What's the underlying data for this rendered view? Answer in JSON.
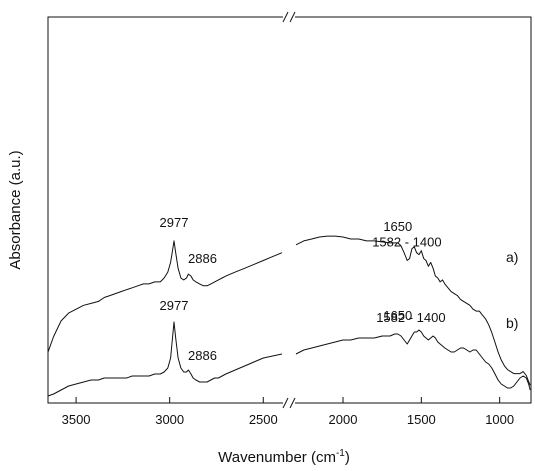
{
  "chart_data": {
    "type": "line",
    "title": "",
    "xlabel": "Wavenumber (cm⁻¹)",
    "ylabel": "Absorbance (a.u.)",
    "x_reversed": true,
    "x_axis_break": true,
    "xlim": [
      3650,
      800
    ],
    "ylim": [
      0,
      1
    ],
    "yticks_shown": false,
    "grid": false,
    "xticks": [
      3500,
      3000,
      2500,
      2000,
      1500,
      1000
    ],
    "xtick_labels": [
      "3500",
      "3000",
      "2500",
      "2000",
      "1500",
      "1000"
    ],
    "series": [
      {
        "name": "a)",
        "label": "a)",
        "x": [
          3650,
          3620,
          3580,
          3540,
          3500,
          3460,
          3420,
          3380,
          3350,
          3320,
          3290,
          3260,
          3230,
          3200,
          3170,
          3140,
          3110,
          3080,
          3050,
          3030,
          3010,
          2995,
          2985,
          2977,
          2968,
          2955,
          2940,
          2925,
          2910,
          2900,
          2886,
          2875,
          2860,
          2840,
          2820,
          2800,
          2780,
          2760,
          2740,
          2720,
          2700,
          2650,
          2600,
          2550,
          2500,
          2450,
          2400,
          2350,
          2300,
          2250,
          2200,
          2150,
          2100,
          2050,
          2000,
          1950,
          1900,
          1850,
          1800,
          1750,
          1700,
          1670,
          1650,
          1630,
          1610,
          1590,
          1575,
          1560,
          1545,
          1530,
          1515,
          1500,
          1485,
          1470,
          1455,
          1440,
          1425,
          1410,
          1395,
          1380,
          1365,
          1350,
          1330,
          1310,
          1290,
          1270,
          1250,
          1230,
          1210,
          1190,
          1170,
          1150,
          1130,
          1110,
          1090,
          1070,
          1050,
          1030,
          1010,
          990,
          970,
          950,
          930,
          910,
          890,
          870,
          850,
          830,
          815,
          805
        ],
        "y": [
          0.22,
          0.3,
          0.38,
          0.42,
          0.44,
          0.46,
          0.47,
          0.48,
          0.5,
          0.51,
          0.52,
          0.53,
          0.54,
          0.55,
          0.56,
          0.57,
          0.57,
          0.58,
          0.58,
          0.6,
          0.63,
          0.68,
          0.74,
          0.79,
          0.73,
          0.65,
          0.6,
          0.59,
          0.6,
          0.62,
          0.61,
          0.59,
          0.58,
          0.57,
          0.56,
          0.56,
          0.57,
          0.58,
          0.59,
          0.6,
          0.61,
          0.63,
          0.65,
          0.67,
          0.69,
          0.71,
          0.73,
          0.75,
          0.77,
          0.79,
          0.8,
          0.81,
          0.815,
          0.815,
          0.81,
          0.8,
          0.8,
          0.79,
          0.79,
          0.785,
          0.78,
          0.78,
          0.78,
          0.765,
          0.73,
          0.69,
          0.7,
          0.75,
          0.76,
          0.73,
          0.72,
          0.74,
          0.7,
          0.69,
          0.66,
          0.68,
          0.65,
          0.61,
          0.6,
          0.58,
          0.59,
          0.57,
          0.55,
          0.53,
          0.52,
          0.51,
          0.49,
          0.48,
          0.47,
          0.46,
          0.44,
          0.43,
          0.43,
          0.41,
          0.39,
          0.36,
          0.32,
          0.27,
          0.22,
          0.18,
          0.15,
          0.13,
          0.12,
          0.11,
          0.11,
          0.11,
          0.12,
          0.1,
          0.07,
          0.05
        ]
      },
      {
        "name": "b)",
        "label": "b)",
        "x": [
          3650,
          3620,
          3580,
          3540,
          3500,
          3460,
          3420,
          3380,
          3350,
          3320,
          3290,
          3260,
          3230,
          3200,
          3170,
          3140,
          3110,
          3080,
          3050,
          3030,
          3010,
          2995,
          2985,
          2977,
          2968,
          2955,
          2940,
          2925,
          2910,
          2900,
          2886,
          2875,
          2860,
          2840,
          2820,
          2800,
          2780,
          2760,
          2740,
          2720,
          2700,
          2650,
          2600,
          2550,
          2500,
          2450,
          2400,
          2350,
          2300,
          2250,
          2200,
          2150,
          2100,
          2050,
          2000,
          1950,
          1900,
          1850,
          1800,
          1750,
          1700,
          1670,
          1650,
          1630,
          1610,
          1590,
          1575,
          1560,
          1545,
          1530,
          1515,
          1500,
          1485,
          1470,
          1455,
          1440,
          1425,
          1410,
          1395,
          1380,
          1365,
          1350,
          1330,
          1310,
          1290,
          1270,
          1250,
          1230,
          1210,
          1190,
          1170,
          1150,
          1130,
          1110,
          1090,
          1070,
          1050,
          1030,
          1010,
          990,
          970,
          950,
          930,
          910,
          890,
          870,
          850,
          830,
          815,
          805
        ],
        "y": [
          0.01,
          0.02,
          0.04,
          0.06,
          0.07,
          0.08,
          0.09,
          0.09,
          0.1,
          0.1,
          0.1,
          0.1,
          0.1,
          0.11,
          0.11,
          0.11,
          0.11,
          0.12,
          0.12,
          0.13,
          0.15,
          0.2,
          0.3,
          0.38,
          0.3,
          0.2,
          0.15,
          0.13,
          0.13,
          0.14,
          0.12,
          0.1,
          0.09,
          0.08,
          0.08,
          0.08,
          0.09,
          0.1,
          0.1,
          0.11,
          0.12,
          0.14,
          0.16,
          0.18,
          0.2,
          0.21,
          0.22,
          0.22,
          0.22,
          0.24,
          0.25,
          0.26,
          0.27,
          0.28,
          0.29,
          0.29,
          0.3,
          0.3,
          0.3,
          0.31,
          0.31,
          0.32,
          0.32,
          0.31,
          0.29,
          0.27,
          0.29,
          0.31,
          0.33,
          0.33,
          0.34,
          0.33,
          0.31,
          0.3,
          0.29,
          0.3,
          0.31,
          0.3,
          0.28,
          0.27,
          0.26,
          0.25,
          0.24,
          0.23,
          0.23,
          0.24,
          0.25,
          0.25,
          0.24,
          0.23,
          0.24,
          0.24,
          0.22,
          0.2,
          0.18,
          0.17,
          0.15,
          0.12,
          0.09,
          0.07,
          0.06,
          0.05,
          0.05,
          0.06,
          0.08,
          0.1,
          0.11,
          0.1,
          0.07,
          0.04
        ]
      }
    ],
    "annotations": [
      {
        "text": "2977",
        "series": "a)",
        "x": 2977
      },
      {
        "text": "2886",
        "series": "a)",
        "x": 2886
      },
      {
        "text": "1650",
        "series": "a)",
        "x": 1650
      },
      {
        "text": "1582 - 1400",
        "series": "a)",
        "x": 1490
      },
      {
        "text": "2977",
        "series": "b)",
        "x": 2977
      },
      {
        "text": "2886",
        "series": "b)",
        "x": 2886
      },
      {
        "text": "1650",
        "series": "b)",
        "x": 1650
      },
      {
        "text": "1582 - 1400",
        "series": "b)",
        "x": 1490
      }
    ]
  }
}
